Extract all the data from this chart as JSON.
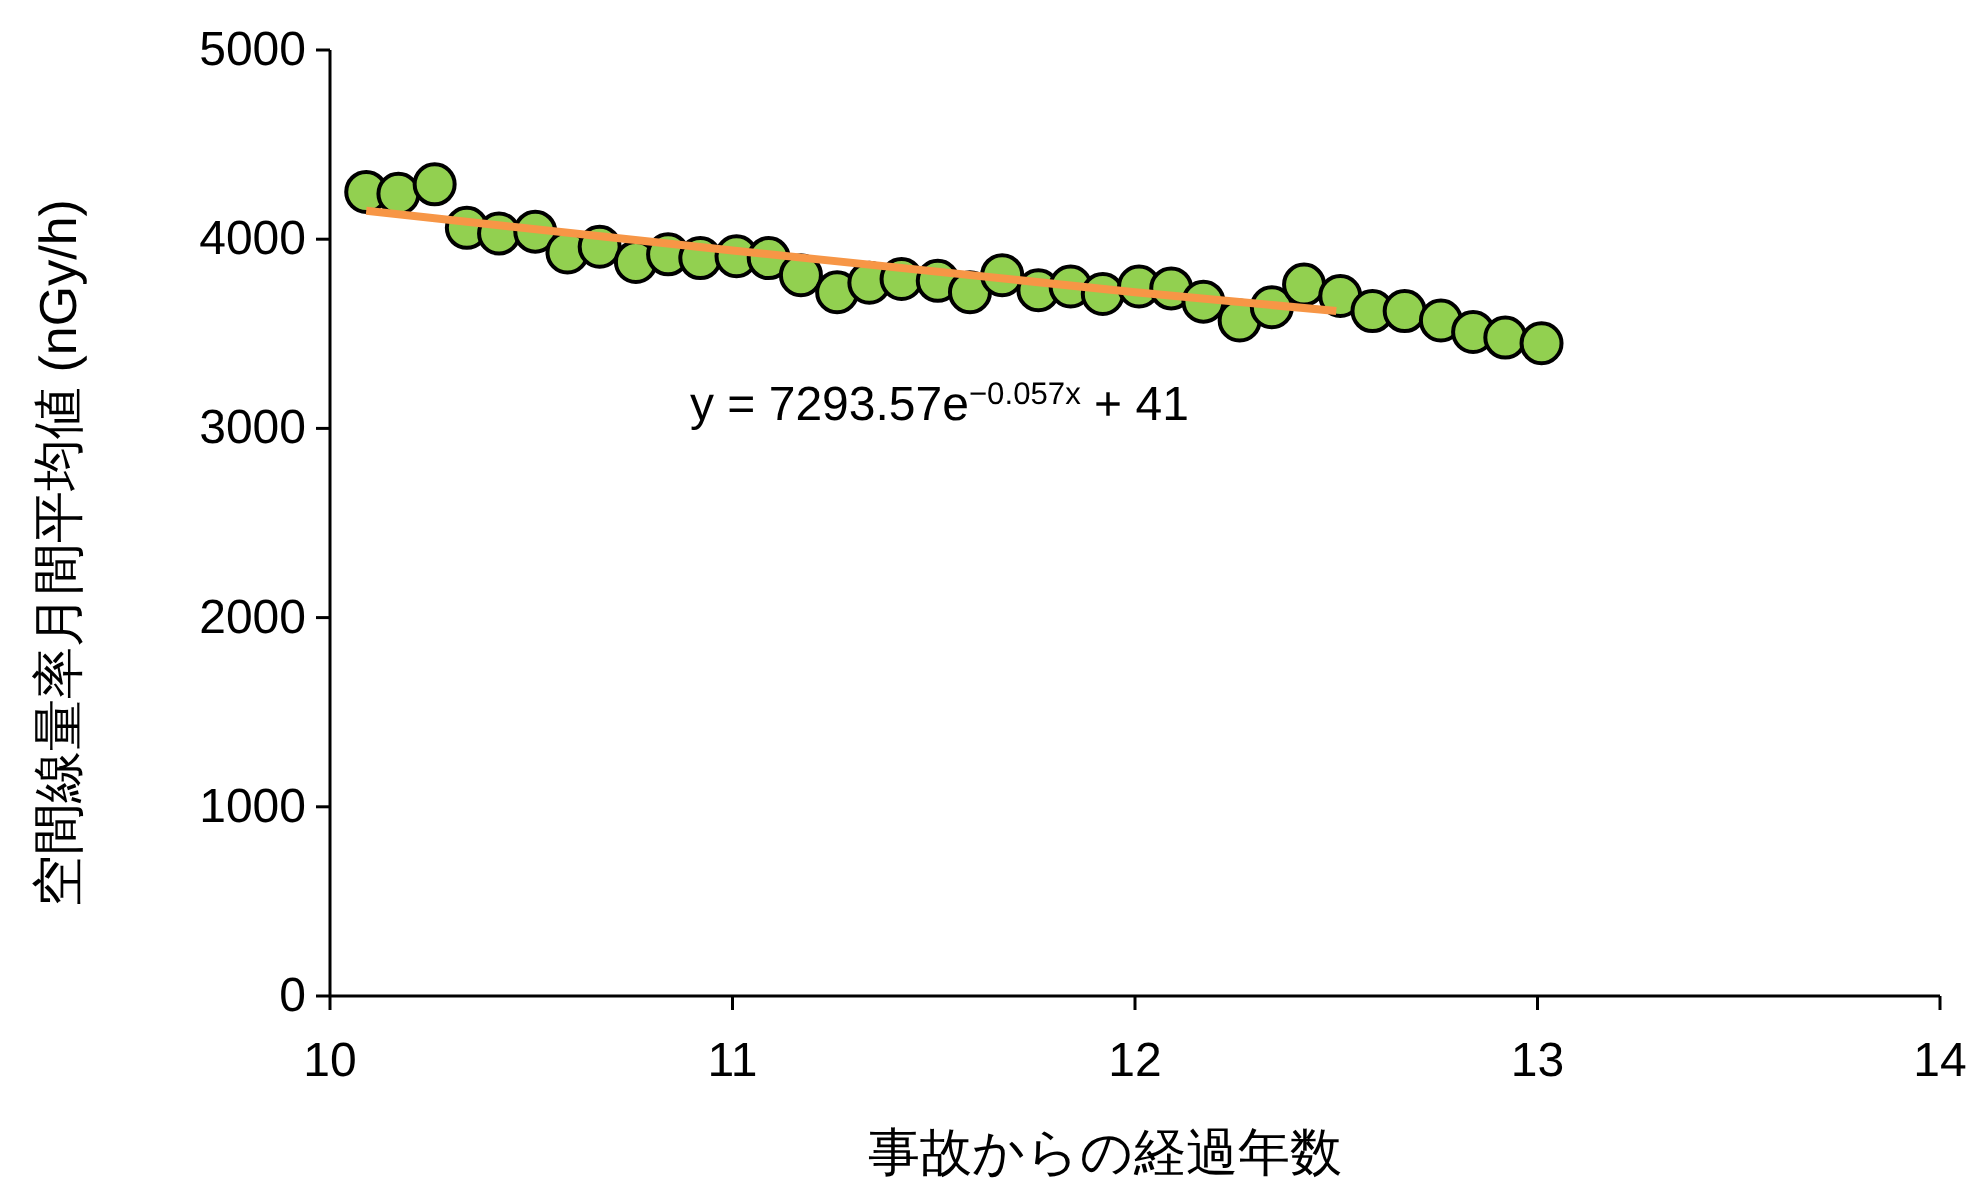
{
  "chart_data": {
    "type": "scatter",
    "xlabel": "事故からの経過年数",
    "ylabel": "空間線量率月間平均値 (nGy/h)",
    "xlim": [
      10,
      14
    ],
    "xticks": [
      10,
      11,
      12,
      13,
      14
    ],
    "ylim": [
      0,
      5000
    ],
    "yticks": [
      0,
      1000,
      2000,
      3000,
      4000,
      5000
    ],
    "grid": false,
    "annotations": [
      "y = 7293.57e$^{−0.057x}$ + 41"
    ],
    "series": [
      {
        "type": "line",
        "color": "#f79646",
        "marker": "none",
        "x": [
          10.09,
          11,
          12,
          12.5
        ],
        "values": [
          4150,
          3940,
          3720,
          3620
        ]
      },
      {
        "type": "scatter",
        "color": "#92d050",
        "marker": "circle",
        "x": [
          10.09,
          10.17,
          10.26,
          10.34,
          10.42,
          10.51,
          10.59,
          10.67,
          10.76,
          10.84,
          10.92,
          11.01,
          11.09,
          11.17,
          11.26,
          11.34,
          11.42,
          11.51,
          11.59,
          11.67,
          11.76,
          11.84,
          11.92,
          12.01,
          12.09,
          12.17,
          12.26,
          12.34,
          12.42,
          12.51,
          12.59,
          12.67,
          12.76,
          12.84,
          12.92,
          13.01
        ],
        "values": [
          4250,
          4240,
          4290,
          4060,
          4030,
          4040,
          3930,
          3960,
          3880,
          3920,
          3900,
          3910,
          3900,
          3810,
          3720,
          3770,
          3790,
          3780,
          3720,
          3810,
          3730,
          3750,
          3710,
          3750,
          3740,
          3670,
          3570,
          3640,
          3760,
          3700,
          3620,
          3620,
          3570,
          3510,
          3480,
          3450
        ]
      }
    ]
  }
}
